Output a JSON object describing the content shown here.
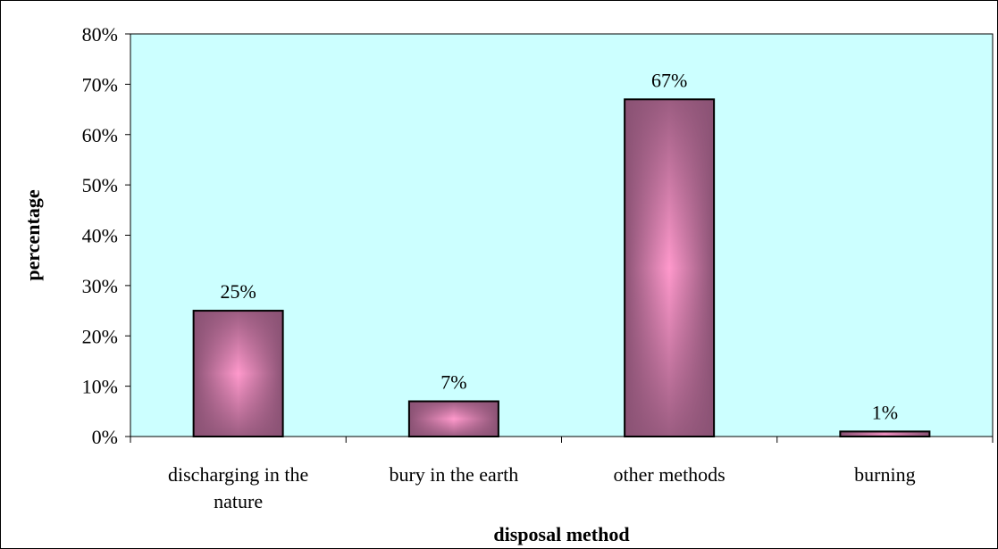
{
  "chart_data": {
    "type": "bar",
    "title": "",
    "xlabel": "disposal method",
    "ylabel": "percentage",
    "categories": [
      [
        "discharging in the",
        "nature"
      ],
      [
        "bury in the earth"
      ],
      [
        "other methods"
      ],
      [
        "burning"
      ]
    ],
    "values": [
      25,
      7,
      67,
      1
    ],
    "data_labels": [
      "25%",
      "7%",
      "67%",
      "1%"
    ],
    "ylim": [
      0,
      80
    ],
    "yticks": [
      0,
      10,
      20,
      30,
      40,
      50,
      60,
      70,
      80
    ],
    "ytick_labels": [
      "0%",
      "10%",
      "20%",
      "30%",
      "40%",
      "50%",
      "60%",
      "70%",
      "80%"
    ],
    "grid": false,
    "legend": "none",
    "colors": {
      "plot_background": "#ccffff",
      "bar_edge": "#8a5274",
      "bar_center": "#ff99cc",
      "bar_outline": "#000000"
    }
  }
}
